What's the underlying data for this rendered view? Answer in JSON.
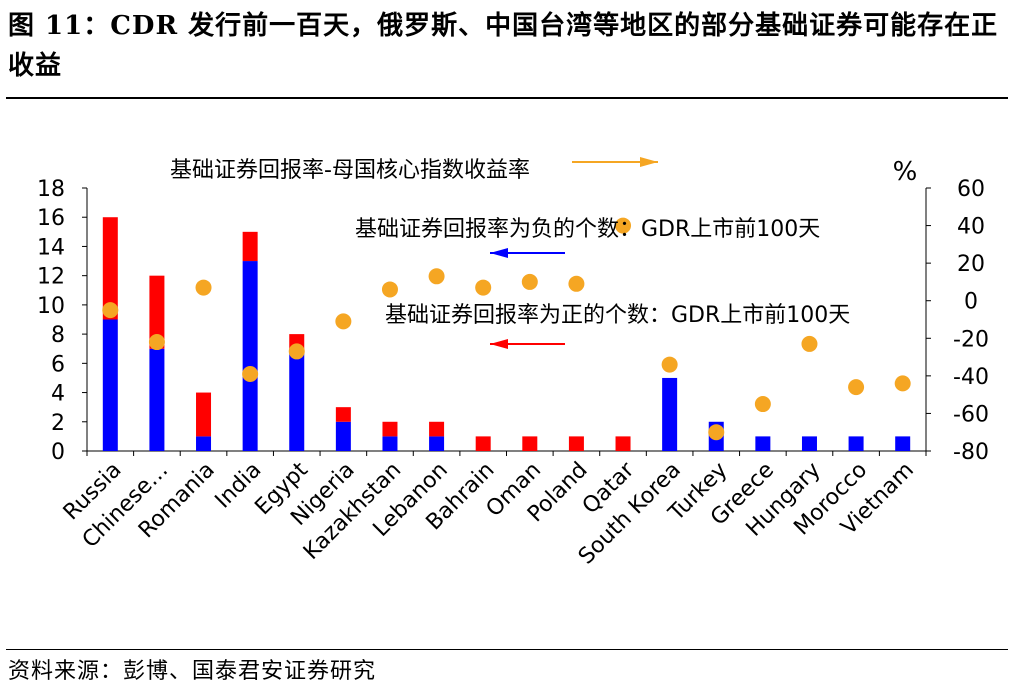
{
  "header": {
    "title": "图 11：CDR 发行前一百天，俄罗斯、中国台湾等地区的部分基础证券可能存在正收益"
  },
  "footer": {
    "source": "资料来源：彭博、国泰君安证券研究"
  },
  "chart_data": {
    "type": "bar",
    "categories": [
      "Russia",
      "Chinese…",
      "Romania",
      "India",
      "Egypt",
      "Nigeria",
      "Kazakhstan",
      "Lebanon",
      "Bahrain",
      "Oman",
      "Poland",
      "Qatar",
      "South Korea",
      "Turkey",
      "Greece",
      "Hungary",
      "Morocco",
      "Vietnam"
    ],
    "series": [
      {
        "name": "基础证券回报率为负的个数：GDR上市前100天",
        "color": "#0000ff",
        "axis": "left",
        "stacked": true,
        "values": [
          9,
          7,
          1,
          13,
          7,
          2,
          1,
          1,
          0,
          0,
          0,
          0,
          5,
          2,
          1,
          1,
          1,
          1
        ]
      },
      {
        "name": "基础证券回报率为正的个数：GDR上市前100天",
        "color": "#ff0000",
        "axis": "left",
        "stacked": true,
        "values": [
          7,
          5,
          3,
          2,
          1,
          1,
          1,
          1,
          1,
          1,
          1,
          1,
          0,
          0,
          0,
          0,
          0,
          0
        ]
      },
      {
        "name": "基础证券回报率-母国核心指数收益率",
        "color": "#f5a623",
        "axis": "right",
        "type": "scatter",
        "values": [
          -5,
          -22,
          7,
          -39,
          -27,
          -11,
          6,
          13,
          7,
          10,
          9,
          40,
          -34,
          -70,
          -55,
          -23,
          -46,
          -44
        ]
      }
    ],
    "y_left": {
      "min": 0,
      "max": 18,
      "step": 2,
      "ticks": [
        "0",
        "2",
        "4",
        "6",
        "8",
        "10",
        "12",
        "14",
        "16",
        "18"
      ]
    },
    "y_right": {
      "min": -80,
      "max": 60,
      "step": 20,
      "unit_label": "%",
      "ticks": [
        "-80",
        "-60",
        "-40",
        "-20",
        "0",
        "20",
        "40",
        "60"
      ]
    },
    "annotations": [
      {
        "text": "基础证券回报率-母国核心指数收益率",
        "arrow": "right",
        "color": "#f5a623"
      },
      {
        "text": "基础证券回报率为负的个数：GDR上市前100天",
        "arrow": "left",
        "color": "#0000ff"
      },
      {
        "text": "基础证券回报率为正的个数：GDR上市前100天",
        "arrow": "left",
        "color": "#ff0000"
      }
    ],
    "grid": false
  }
}
